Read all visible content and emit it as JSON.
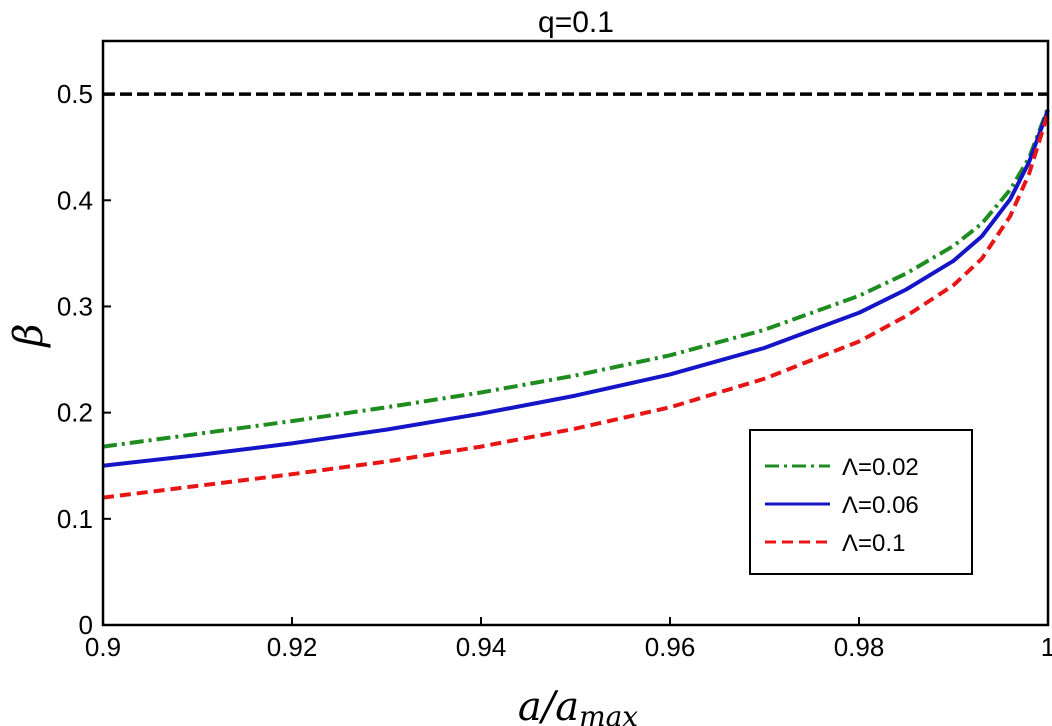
{
  "chart_data": {
    "type": "line",
    "title": "q=0.1",
    "xlabel": "a/a",
    "xlabel_sub": "max",
    "ylabel": "β",
    "xlim": [
      0.9,
      1.0
    ],
    "ylim": [
      0,
      0.55
    ],
    "xticks": [
      {
        "value": 0.9,
        "label": "0.9"
      },
      {
        "value": 0.92,
        "label": "0.92"
      },
      {
        "value": 0.94,
        "label": "0.94"
      },
      {
        "value": 0.96,
        "label": "0.96"
      },
      {
        "value": 0.98,
        "label": "0.98"
      },
      {
        "value": 1.0,
        "label": "1"
      }
    ],
    "yticks": [
      {
        "value": 0,
        "label": "0"
      },
      {
        "value": 0.1,
        "label": "0.1"
      },
      {
        "value": 0.2,
        "label": "0.2"
      },
      {
        "value": 0.3,
        "label": "0.3"
      },
      {
        "value": 0.4,
        "label": "0.4"
      },
      {
        "value": 0.5,
        "label": "0.5"
      }
    ],
    "grid": false,
    "legend_position": "bottom-right",
    "reference_line": {
      "y": 0.5,
      "color": "#000000",
      "style": "dashed"
    },
    "series": [
      {
        "name": "Λ=0.02",
        "color": "#1f8c1f",
        "style": "dashdot",
        "x": [
          0.9,
          0.91,
          0.92,
          0.93,
          0.94,
          0.95,
          0.96,
          0.97,
          0.98,
          0.985,
          0.99,
          0.993,
          0.996,
          0.998,
          1.0
        ],
        "y": [
          0.168,
          0.18,
          0.192,
          0.205,
          0.219,
          0.235,
          0.254,
          0.278,
          0.31,
          0.331,
          0.357,
          0.378,
          0.41,
          0.44,
          0.487
        ]
      },
      {
        "name": "Λ=0.06",
        "color": "#1515c8",
        "style": "solid",
        "x": [
          0.9,
          0.91,
          0.92,
          0.93,
          0.94,
          0.95,
          0.96,
          0.97,
          0.98,
          0.985,
          0.99,
          0.993,
          0.996,
          0.998,
          1.0
        ],
        "y": [
          0.15,
          0.16,
          0.171,
          0.184,
          0.199,
          0.216,
          0.236,
          0.261,
          0.294,
          0.316,
          0.343,
          0.366,
          0.401,
          0.436,
          0.485
        ]
      },
      {
        "name": "Λ=0.1",
        "color": "#e81515",
        "style": "dashed",
        "x": [
          0.9,
          0.91,
          0.92,
          0.93,
          0.94,
          0.95,
          0.96,
          0.97,
          0.98,
          0.985,
          0.99,
          0.993,
          0.996,
          0.998,
          1.0
        ],
        "y": [
          0.12,
          0.131,
          0.142,
          0.154,
          0.168,
          0.185,
          0.205,
          0.232,
          0.267,
          0.291,
          0.32,
          0.345,
          0.385,
          0.425,
          0.482
        ]
      }
    ]
  }
}
